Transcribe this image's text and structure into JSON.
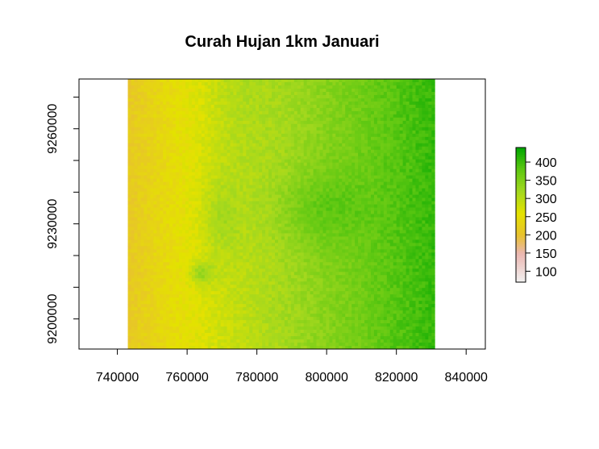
{
  "chart_data": {
    "type": "heatmap",
    "title": "Curah Hujan 1km Januari",
    "xlabel": "",
    "ylabel": "",
    "xlim": [
      729000,
      845500
    ],
    "ylim": [
      9190500,
      9275700
    ],
    "raster_extent": {
      "x": [
        743000,
        831000
      ],
      "y": [
        9190500,
        9275700
      ]
    },
    "x_ticks": [
      740000,
      760000,
      780000,
      800000,
      820000,
      840000
    ],
    "x_tick_labels": [
      "740000",
      "760000",
      "780000",
      "800000",
      "820000",
      "840000"
    ],
    "y_ticks": [
      9200000,
      9210000,
      9220000,
      9230000,
      9240000,
      9250000,
      9260000,
      9270000
    ],
    "y_tick_labels": [
      "9200000",
      "",
      "",
      "9230000",
      "",
      "",
      "9260000",
      ""
    ],
    "legend": {
      "ticks": [
        100,
        150,
        200,
        250,
        300,
        350,
        400
      ],
      "tick_labels": [
        "100",
        "150",
        "200",
        "250",
        "300",
        "350",
        "400"
      ],
      "range": [
        70,
        440
      ],
      "placement": "right"
    },
    "color_scale": [
      {
        "value": 70,
        "color": "#f2f2f2"
      },
      {
        "value": 150,
        "color": "#ebb6b0"
      },
      {
        "value": 200,
        "color": "#e8c22e"
      },
      {
        "value": 260,
        "color": "#e4e200"
      },
      {
        "value": 320,
        "color": "#a3d81e"
      },
      {
        "value": 380,
        "color": "#5ec812"
      },
      {
        "value": 440,
        "color": "#00a600"
      }
    ],
    "grid": false,
    "value_pattern": "Rainfall increases from ~200-220 in the west to ~380-430 in the east; greener patch around x 790000-820000, y 9225000-9240000; yellow band near x 775000-785000 in the north."
  }
}
